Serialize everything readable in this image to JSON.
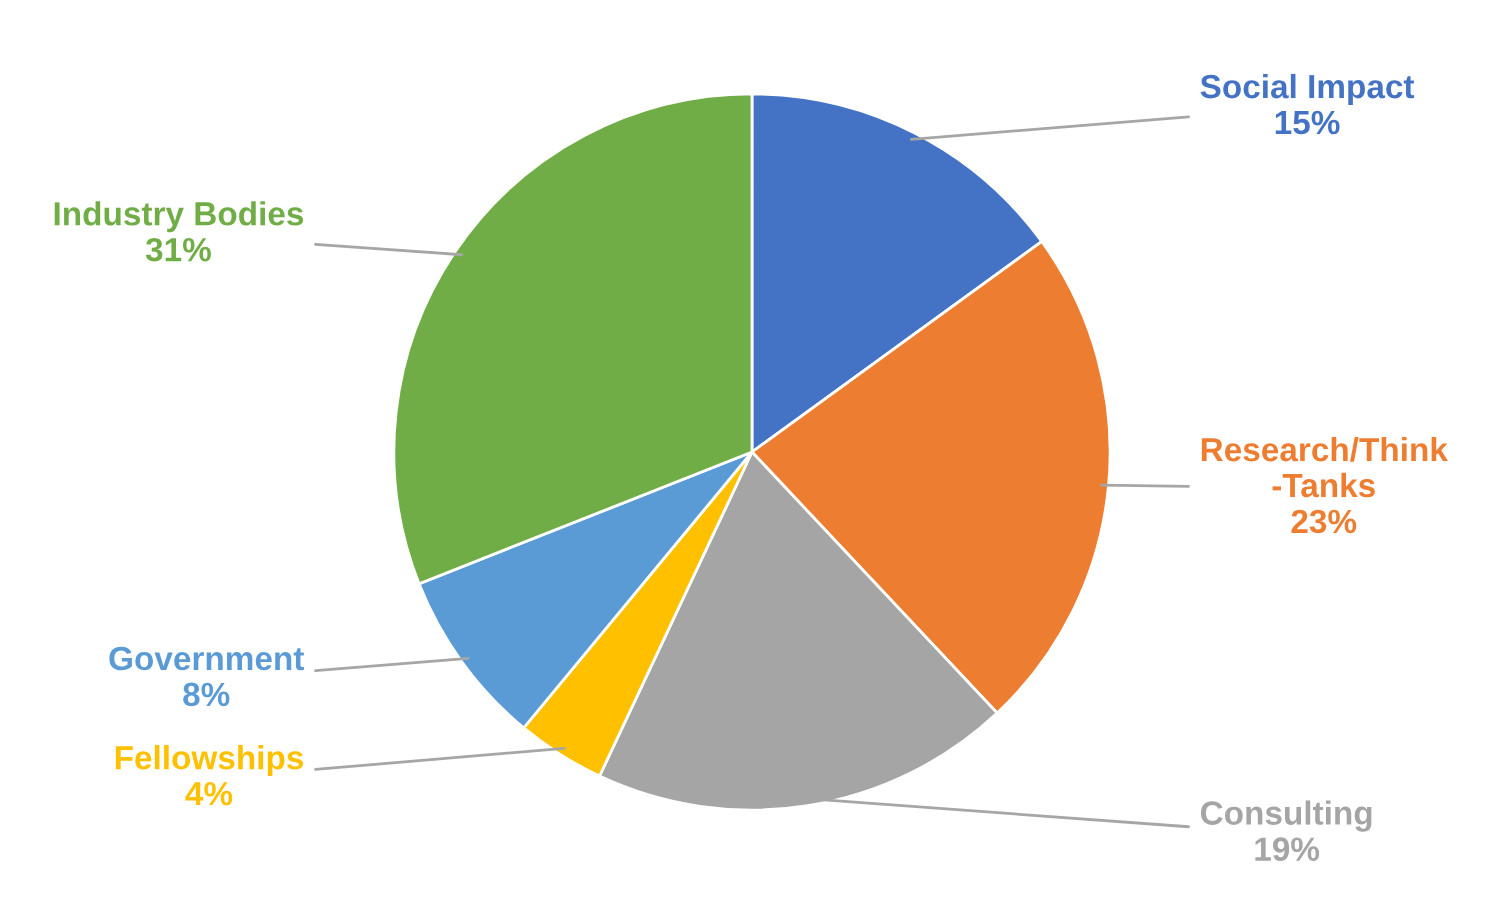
{
  "chart_data": {
    "type": "pie",
    "categories": [
      "Social Impact",
      "Research/Think\n-Tanks",
      "Consulting",
      "Fellowships",
      "Government",
      "Industry Bodies"
    ],
    "values": [
      15,
      23,
      19,
      4,
      8,
      31
    ],
    "value_labels": [
      "15%",
      "23%",
      "19%",
      "4%",
      "8%",
      "31%"
    ],
    "colors": [
      "#4472c4",
      "#ed7d31",
      "#a5a5a5",
      "#ffc000",
      "#5b9bd5",
      "#70ad47"
    ],
    "legend": false
  }
}
